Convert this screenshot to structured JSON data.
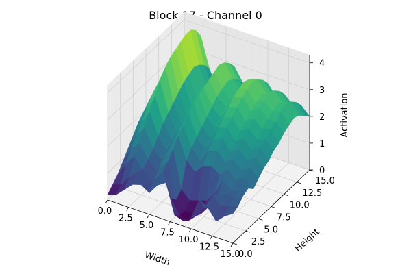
{
  "chart_data": {
    "type": "surface",
    "title": "Block 17 - Channel 0",
    "xlabel": "Width",
    "ylabel": "Height",
    "zlabel": "Activation",
    "xlim": [
      0,
      15
    ],
    "ylim": [
      0,
      15
    ],
    "zlim": [
      0,
      4.3
    ],
    "xticks": [
      "0.0",
      "2.5",
      "5.0",
      "7.5",
      "10.0",
      "12.5",
      "15.0"
    ],
    "yticks": [
      "0.0",
      "2.5",
      "5.0",
      "7.5",
      "10.0",
      "12.5",
      "15.0"
    ],
    "zticks": [
      "0",
      "1",
      "2",
      "3",
      "4"
    ],
    "xtick_values": [
      0,
      2.5,
      5,
      7.5,
      10,
      12.5,
      15
    ],
    "ytick_values": [
      0,
      2.5,
      5,
      7.5,
      10,
      12.5,
      15
    ],
    "ztick_values": [
      0,
      1,
      2,
      3,
      4
    ],
    "colormap": "viridis",
    "grid": true,
    "x": [
      0,
      1,
      2,
      3,
      4,
      5,
      6,
      7,
      8,
      9,
      10,
      11,
      12,
      13,
      14,
      15
    ],
    "y": [
      0,
      1,
      2,
      3,
      4,
      5,
      6,
      7,
      8,
      9,
      10,
      11,
      12,
      13,
      14,
      15
    ],
    "z": [
      [
        0.2,
        0.3,
        0.6,
        0.9,
        1.0,
        0.8,
        1.2,
        1.4,
        0.3,
        0.2,
        0.4,
        1.2,
        1.0,
        0.6,
        0.9,
        1.1
      ],
      [
        0.4,
        0.5,
        0.9,
        1.2,
        0.9,
        1.1,
        1.5,
        0.6,
        0.1,
        0.0,
        0.3,
        0.7,
        1.3,
        1.0,
        1.1,
        1.2
      ],
      [
        0.6,
        1.1,
        1.5,
        1.1,
        0.8,
        1.4,
        1.7,
        0.4,
        0.1,
        0.1,
        0.2,
        0.6,
        1.1,
        1.3,
        1.2,
        1.4
      ],
      [
        0.9,
        1.5,
        1.8,
        1.3,
        1.0,
        1.6,
        2.0,
        0.6,
        0.3,
        0.4,
        0.5,
        0.9,
        1.5,
        1.2,
        1.3,
        1.5
      ],
      [
        1.2,
        1.8,
        2.2,
        1.5,
        1.2,
        1.7,
        2.3,
        1.5,
        1.2,
        1.5,
        1.6,
        1.4,
        1.7,
        1.4,
        1.6,
        1.3
      ],
      [
        1.5,
        2.1,
        2.6,
        1.8,
        1.4,
        1.9,
        2.5,
        1.8,
        1.4,
        1.9,
        2.0,
        1.7,
        1.9,
        1.6,
        1.8,
        1.5
      ],
      [
        1.8,
        2.4,
        3.0,
        2.1,
        1.6,
        2.1,
        2.8,
        2.0,
        1.7,
        2.1,
        2.3,
        1.9,
        2.1,
        1.8,
        2.0,
        1.7
      ],
      [
        2.0,
        2.7,
        3.4,
        2.3,
        1.7,
        2.2,
        3.0,
        2.2,
        1.9,
        2.4,
        2.5,
        2.1,
        2.3,
        2.0,
        2.2,
        1.8
      ],
      [
        2.2,
        2.9,
        3.7,
        2.5,
        1.8,
        2.4,
        3.1,
        2.4,
        2.1,
        2.6,
        2.7,
        2.3,
        2.5,
        2.2,
        2.3,
        2.0
      ],
      [
        2.4,
        3.1,
        3.9,
        2.7,
        1.9,
        2.5,
        3.2,
        2.6,
        2.3,
        2.8,
        2.9,
        2.5,
        2.7,
        2.4,
        2.5,
        2.1
      ],
      [
        2.5,
        3.2,
        4.0,
        2.9,
        2.0,
        2.6,
        3.3,
        2.8,
        2.5,
        3.0,
        3.1,
        2.7,
        2.9,
        2.6,
        2.6,
        2.3
      ],
      [
        2.6,
        3.3,
        4.1,
        3.0,
        2.1,
        2.7,
        3.4,
        2.9,
        2.6,
        3.1,
        3.2,
        2.8,
        3.0,
        2.7,
        2.8,
        2.4
      ],
      [
        2.5,
        3.2,
        4.2,
        3.1,
        2.2,
        2.8,
        3.5,
        3.0,
        2.7,
        3.2,
        3.3,
        2.9,
        3.1,
        2.8,
        2.9,
        2.5
      ],
      [
        2.4,
        3.0,
        4.2,
        3.0,
        2.1,
        2.7,
        3.4,
        2.9,
        2.6,
        3.1,
        3.2,
        2.8,
        3.0,
        2.7,
        2.8,
        2.4
      ],
      [
        2.2,
        2.8,
        4.0,
        2.8,
        2.0,
        2.5,
        3.2,
        2.7,
        2.4,
        2.9,
        3.0,
        2.6,
        2.8,
        2.5,
        2.6,
        2.2
      ],
      [
        2.0,
        2.5,
        3.6,
        2.5,
        1.8,
        2.3,
        2.9,
        2.4,
        2.2,
        2.6,
        2.7,
        2.3,
        2.5,
        2.2,
        2.3,
        2.0
      ]
    ]
  }
}
